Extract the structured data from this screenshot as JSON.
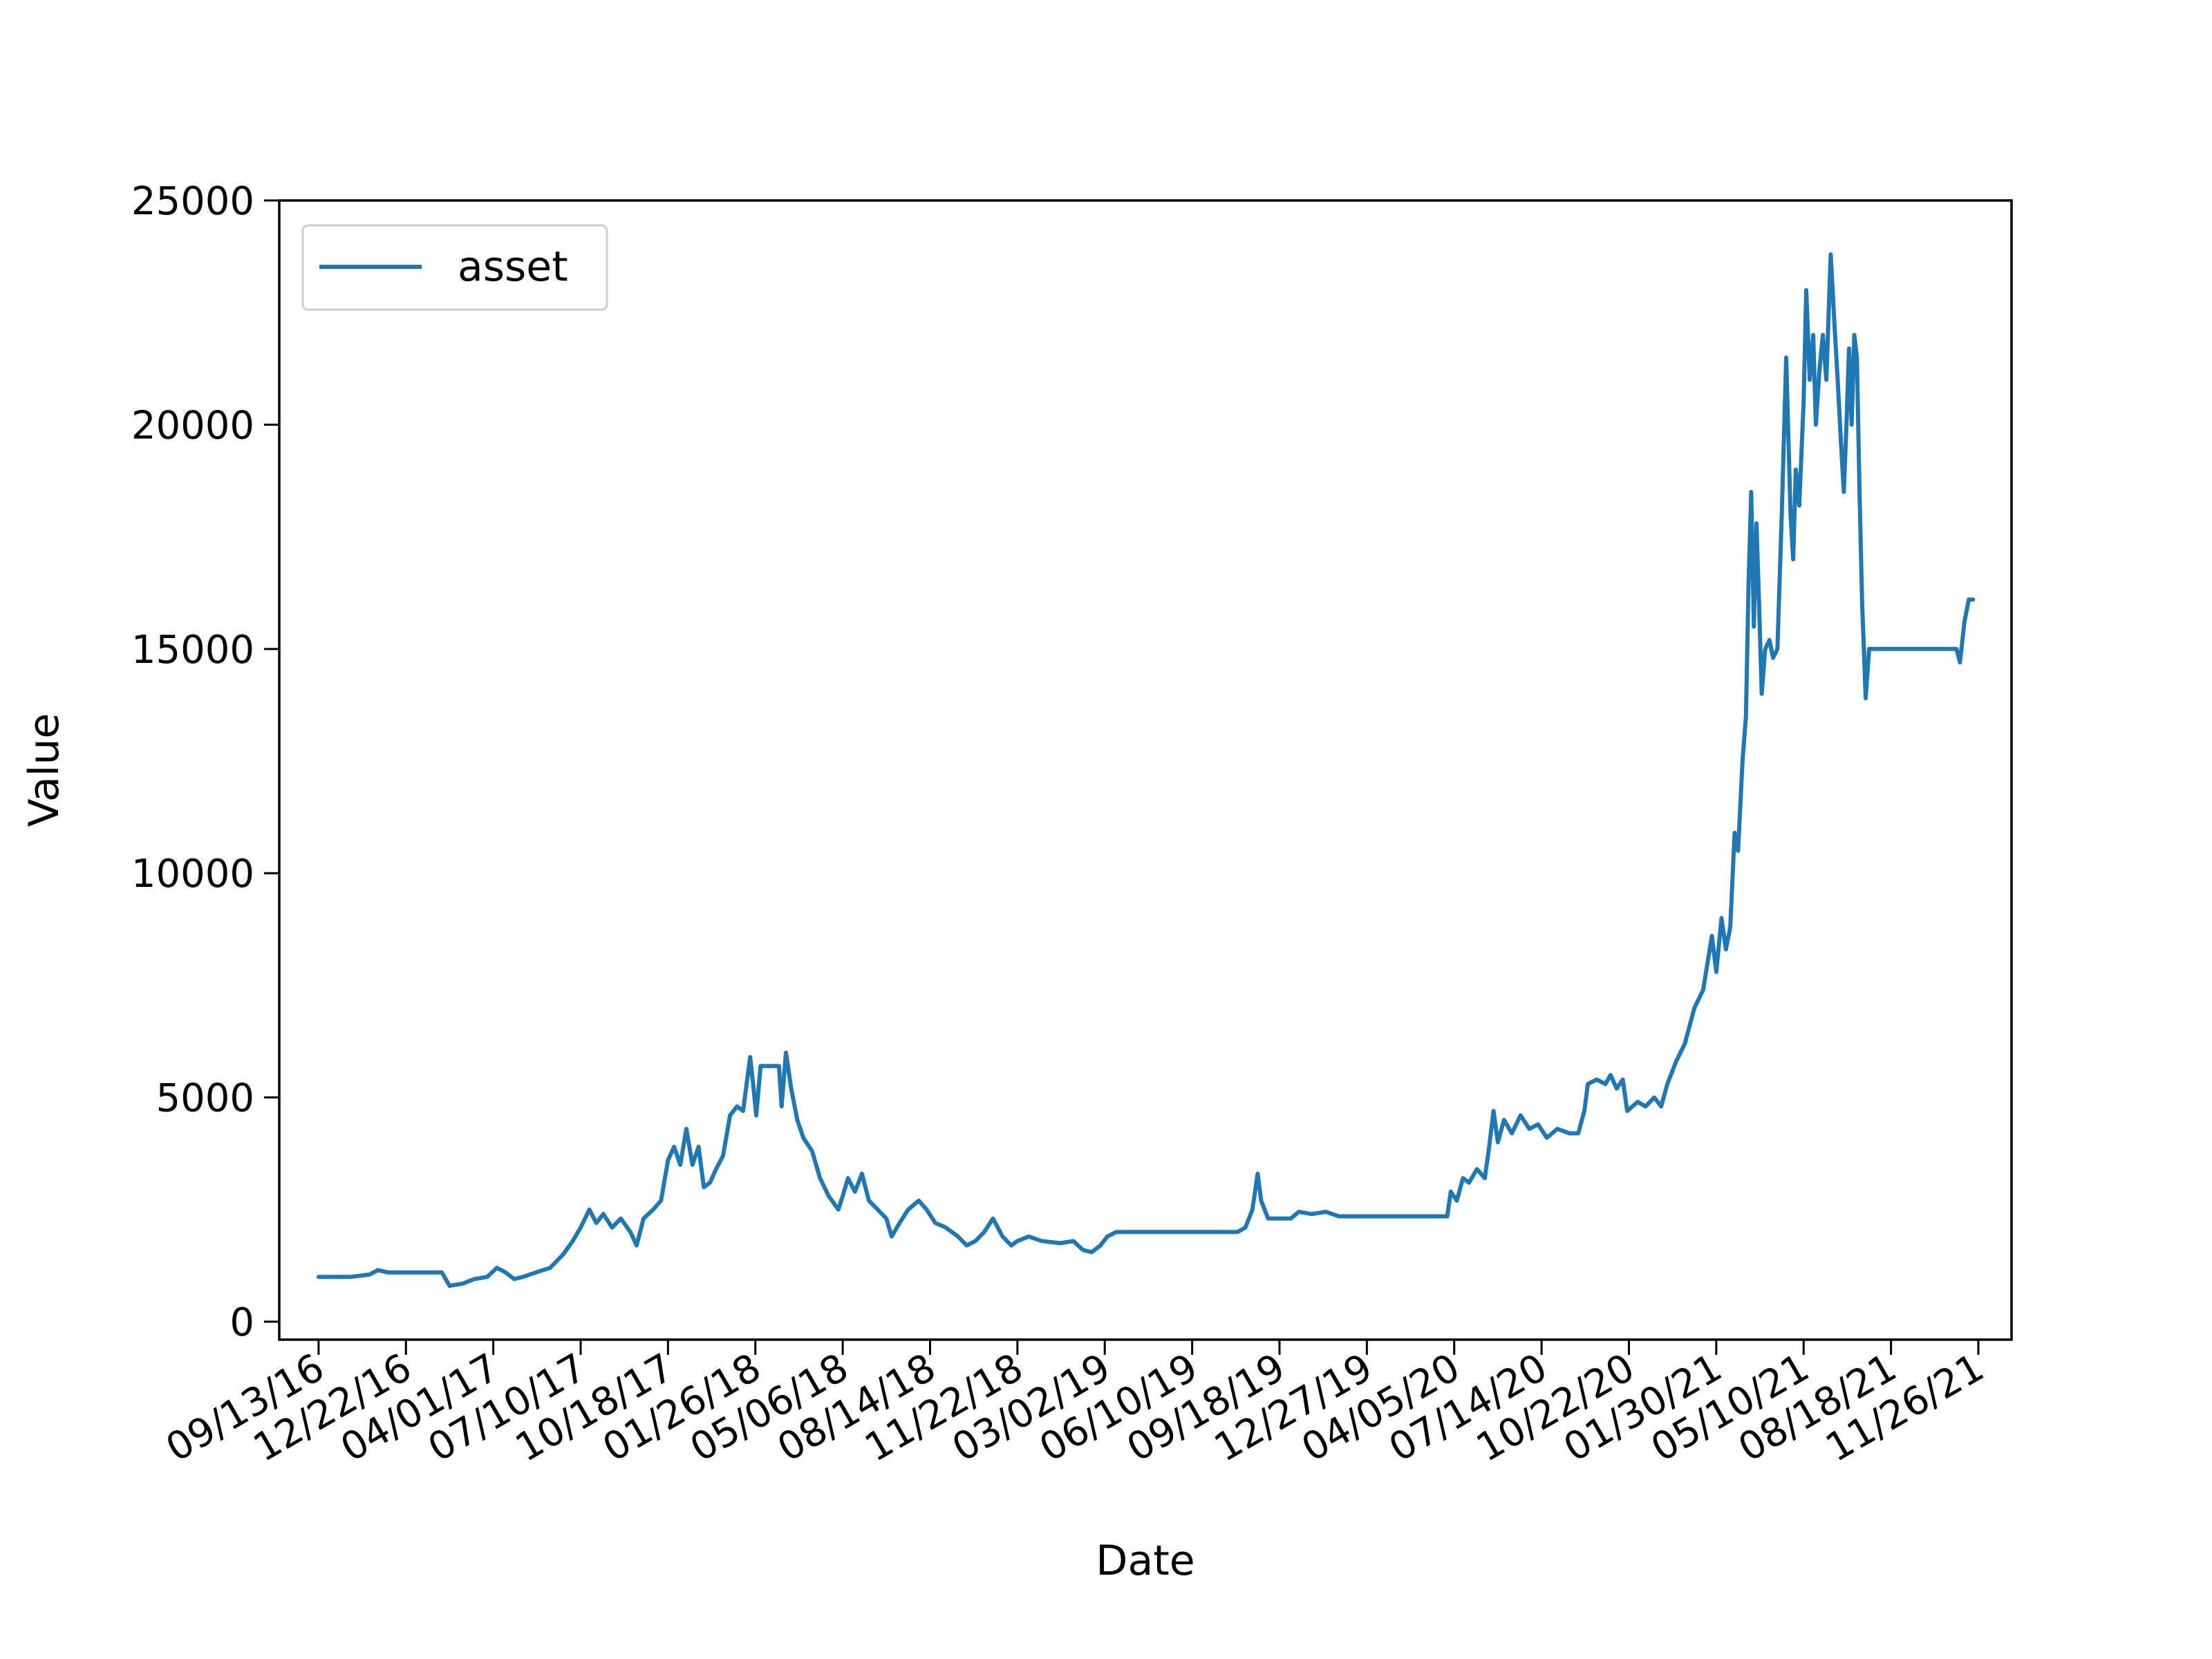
{
  "chart_data": {
    "type": "line",
    "title": "",
    "xlabel": "Date",
    "ylabel": "Value",
    "ylim": [
      -400,
      25000
    ],
    "xlim": [
      "2016-07-30",
      "2022-01-03"
    ],
    "grid": false,
    "legend_position": "top-left",
    "x_ticks": [
      "09/13/16",
      "12/22/16",
      "04/01/17",
      "07/10/17",
      "10/18/17",
      "01/26/18",
      "05/06/18",
      "08/14/18",
      "11/22/18",
      "03/02/19",
      "06/10/19",
      "09/18/19",
      "12/27/19",
      "04/05/20",
      "07/14/20",
      "10/22/20",
      "01/30/21",
      "05/10/21",
      "08/18/21",
      "11/26/21"
    ],
    "x_tick_dates": [
      "2016-09-13",
      "2016-12-22",
      "2017-04-01",
      "2017-07-10",
      "2017-10-18",
      "2018-01-26",
      "2018-05-06",
      "2018-08-14",
      "2018-11-22",
      "2019-03-02",
      "2019-06-10",
      "2019-09-18",
      "2019-12-27",
      "2020-04-05",
      "2020-07-14",
      "2020-10-22",
      "2021-01-30",
      "2021-05-10",
      "2021-08-18",
      "2021-11-26"
    ],
    "y_ticks": [
      0,
      5000,
      10000,
      15000,
      20000,
      25000
    ],
    "series": [
      {
        "name": "asset",
        "color": "#1f77b4",
        "points": [
          [
            "2016-09-13",
            1000
          ],
          [
            "2016-10-20",
            1000
          ],
          [
            "2016-11-10",
            1050
          ],
          [
            "2016-11-20",
            1150
          ],
          [
            "2016-12-01",
            1100
          ],
          [
            "2016-12-22",
            1100
          ],
          [
            "2017-01-10",
            1100
          ],
          [
            "2017-02-01",
            1100
          ],
          [
            "2017-02-10",
            800
          ],
          [
            "2017-02-25",
            850
          ],
          [
            "2017-03-10",
            950
          ],
          [
            "2017-03-25",
            1000
          ],
          [
            "2017-04-05",
            1200
          ],
          [
            "2017-04-15",
            1100
          ],
          [
            "2017-04-25",
            950
          ],
          [
            "2017-05-05",
            1000
          ],
          [
            "2017-05-20",
            1100
          ],
          [
            "2017-06-05",
            1200
          ],
          [
            "2017-06-20",
            1500
          ],
          [
            "2017-07-01",
            1800
          ],
          [
            "2017-07-10",
            2100
          ],
          [
            "2017-07-20",
            2500
          ],
          [
            "2017-07-28",
            2200
          ],
          [
            "2017-08-05",
            2400
          ],
          [
            "2017-08-15",
            2100
          ],
          [
            "2017-08-25",
            2300
          ],
          [
            "2017-09-05",
            2000
          ],
          [
            "2017-09-12",
            1700
          ],
          [
            "2017-09-20",
            2300
          ],
          [
            "2017-10-01",
            2500
          ],
          [
            "2017-10-10",
            2700
          ],
          [
            "2017-10-18",
            3600
          ],
          [
            "2017-10-25",
            3900
          ],
          [
            "2017-11-01",
            3500
          ],
          [
            "2017-11-08",
            4300
          ],
          [
            "2017-11-15",
            3500
          ],
          [
            "2017-11-22",
            3900
          ],
          [
            "2017-11-28",
            3000
          ],
          [
            "2017-12-05",
            3100
          ],
          [
            "2017-12-12",
            3400
          ],
          [
            "2017-12-20",
            3700
          ],
          [
            "2017-12-28",
            4600
          ],
          [
            "2018-01-05",
            4800
          ],
          [
            "2018-01-12",
            4700
          ],
          [
            "2018-01-16",
            5300
          ],
          [
            "2018-01-20",
            5900
          ],
          [
            "2018-01-24",
            5200
          ],
          [
            "2018-01-27",
            4600
          ],
          [
            "2018-02-01",
            5700
          ],
          [
            "2018-02-15",
            5700
          ],
          [
            "2018-02-22",
            5700
          ],
          [
            "2018-02-25",
            4800
          ],
          [
            "2018-03-02",
            6000
          ],
          [
            "2018-03-08",
            5200
          ],
          [
            "2018-03-15",
            4500
          ],
          [
            "2018-03-22",
            4100
          ],
          [
            "2018-04-01",
            3800
          ],
          [
            "2018-04-10",
            3200
          ],
          [
            "2018-04-20",
            2800
          ],
          [
            "2018-05-01",
            2500
          ],
          [
            "2018-05-06",
            2800
          ],
          [
            "2018-05-12",
            3200
          ],
          [
            "2018-05-20",
            2900
          ],
          [
            "2018-05-28",
            3300
          ],
          [
            "2018-06-05",
            2700
          ],
          [
            "2018-06-15",
            2500
          ],
          [
            "2018-06-25",
            2300
          ],
          [
            "2018-07-01",
            1900
          ],
          [
            "2018-07-10",
            2200
          ],
          [
            "2018-07-20",
            2500
          ],
          [
            "2018-08-01",
            2700
          ],
          [
            "2018-08-10",
            2500
          ],
          [
            "2018-08-20",
            2200
          ],
          [
            "2018-09-01",
            2100
          ],
          [
            "2018-09-15",
            1900
          ],
          [
            "2018-09-25",
            1700
          ],
          [
            "2018-10-05",
            1800
          ],
          [
            "2018-10-15",
            2000
          ],
          [
            "2018-10-25",
            2300
          ],
          [
            "2018-11-05",
            1900
          ],
          [
            "2018-11-15",
            1700
          ],
          [
            "2018-11-22",
            1800
          ],
          [
            "2018-12-05",
            1900
          ],
          [
            "2018-12-20",
            1800
          ],
          [
            "2019-01-10",
            1750
          ],
          [
            "2019-01-25",
            1800
          ],
          [
            "2019-02-05",
            1600
          ],
          [
            "2019-02-15",
            1550
          ],
          [
            "2019-02-25",
            1700
          ],
          [
            "2019-03-05",
            1900
          ],
          [
            "2019-03-15",
            2000
          ],
          [
            "2019-04-01",
            2000
          ],
          [
            "2019-05-01",
            2000
          ],
          [
            "2019-06-01",
            2000
          ],
          [
            "2019-07-01",
            2000
          ],
          [
            "2019-08-01",
            2000
          ],
          [
            "2019-08-10",
            2100
          ],
          [
            "2019-08-18",
            2500
          ],
          [
            "2019-08-24",
            3300
          ],
          [
            "2019-08-28",
            2700
          ],
          [
            "2019-09-05",
            2300
          ],
          [
            "2019-09-18",
            2300
          ],
          [
            "2019-10-01",
            2300
          ],
          [
            "2019-10-10",
            2450
          ],
          [
            "2019-10-25",
            2400
          ],
          [
            "2019-11-10",
            2450
          ],
          [
            "2019-11-25",
            2350
          ],
          [
            "2019-12-27",
            2350
          ],
          [
            "2020-02-01",
            2350
          ],
          [
            "2020-03-01",
            2350
          ],
          [
            "2020-03-20",
            2350
          ],
          [
            "2020-03-28",
            2350
          ],
          [
            "2020-04-01",
            2900
          ],
          [
            "2020-04-08",
            2700
          ],
          [
            "2020-04-15",
            3200
          ],
          [
            "2020-04-22",
            3100
          ],
          [
            "2020-05-01",
            3400
          ],
          [
            "2020-05-10",
            3200
          ],
          [
            "2020-05-15",
            3900
          ],
          [
            "2020-05-20",
            4700
          ],
          [
            "2020-05-25",
            4000
          ],
          [
            "2020-06-01",
            4500
          ],
          [
            "2020-06-10",
            4200
          ],
          [
            "2020-06-20",
            4600
          ],
          [
            "2020-06-30",
            4300
          ],
          [
            "2020-07-10",
            4400
          ],
          [
            "2020-07-20",
            4100
          ],
          [
            "2020-08-01",
            4300
          ],
          [
            "2020-08-15",
            4200
          ],
          [
            "2020-08-25",
            4200
          ],
          [
            "2020-09-01",
            4700
          ],
          [
            "2020-09-05",
            5300
          ],
          [
            "2020-09-15",
            5400
          ],
          [
            "2020-09-25",
            5300
          ],
          [
            "2020-10-01",
            5500
          ],
          [
            "2020-10-08",
            5200
          ],
          [
            "2020-10-15",
            5400
          ],
          [
            "2020-10-20",
            4700
          ],
          [
            "2020-11-01",
            4900
          ],
          [
            "2020-11-10",
            4800
          ],
          [
            "2020-11-20",
            5000
          ],
          [
            "2020-11-28",
            4800
          ],
          [
            "2020-12-05",
            5300
          ],
          [
            "2020-12-15",
            5800
          ],
          [
            "2020-12-25",
            6200
          ],
          [
            "2021-01-05",
            7000
          ],
          [
            "2021-01-15",
            7400
          ],
          [
            "2021-01-25",
            8600
          ],
          [
            "2021-01-30",
            7800
          ],
          [
            "2021-02-05",
            9000
          ],
          [
            "2021-02-10",
            8300
          ],
          [
            "2021-02-15",
            8800
          ],
          [
            "2021-02-20",
            10900
          ],
          [
            "2021-02-24",
            10500
          ],
          [
            "2021-03-01",
            12500
          ],
          [
            "2021-03-05",
            13500
          ],
          [
            "2021-03-08",
            16500
          ],
          [
            "2021-03-11",
            18500
          ],
          [
            "2021-03-14",
            15500
          ],
          [
            "2021-03-17",
            17800
          ],
          [
            "2021-03-20",
            16000
          ],
          [
            "2021-03-23",
            14000
          ],
          [
            "2021-03-27",
            15000
          ],
          [
            "2021-04-01",
            15200
          ],
          [
            "2021-04-05",
            14800
          ],
          [
            "2021-04-10",
            15000
          ],
          [
            "2021-04-15",
            18000
          ],
          [
            "2021-04-20",
            21500
          ],
          [
            "2021-04-25",
            18000
          ],
          [
            "2021-04-28",
            17000
          ],
          [
            "2021-05-01",
            19000
          ],
          [
            "2021-05-05",
            18200
          ],
          [
            "2021-05-10",
            20500
          ],
          [
            "2021-05-13",
            23000
          ],
          [
            "2021-05-17",
            21000
          ],
          [
            "2021-05-21",
            22000
          ],
          [
            "2021-05-24",
            20000
          ],
          [
            "2021-05-28",
            21200
          ],
          [
            "2021-06-01",
            22000
          ],
          [
            "2021-06-05",
            21000
          ],
          [
            "2021-06-10",
            23800
          ],
          [
            "2021-06-15",
            22000
          ],
          [
            "2021-06-18",
            21000
          ],
          [
            "2021-06-22",
            19500
          ],
          [
            "2021-06-25",
            18500
          ],
          [
            "2021-06-28",
            20000
          ],
          [
            "2021-07-01",
            21700
          ],
          [
            "2021-07-04",
            20000
          ],
          [
            "2021-07-07",
            22000
          ],
          [
            "2021-07-10",
            21500
          ],
          [
            "2021-07-13",
            18500
          ],
          [
            "2021-07-16",
            16000
          ],
          [
            "2021-07-18",
            15000
          ],
          [
            "2021-07-20",
            13900
          ],
          [
            "2021-07-24",
            15000
          ],
          [
            "2021-08-18",
            15000
          ],
          [
            "2021-09-20",
            15000
          ],
          [
            "2021-10-25",
            15000
          ],
          [
            "2021-11-01",
            15000
          ],
          [
            "2021-11-05",
            14700
          ],
          [
            "2021-11-10",
            15600
          ],
          [
            "2021-11-15",
            16100
          ],
          [
            "2021-11-20",
            16100
          ]
        ]
      }
    ]
  }
}
